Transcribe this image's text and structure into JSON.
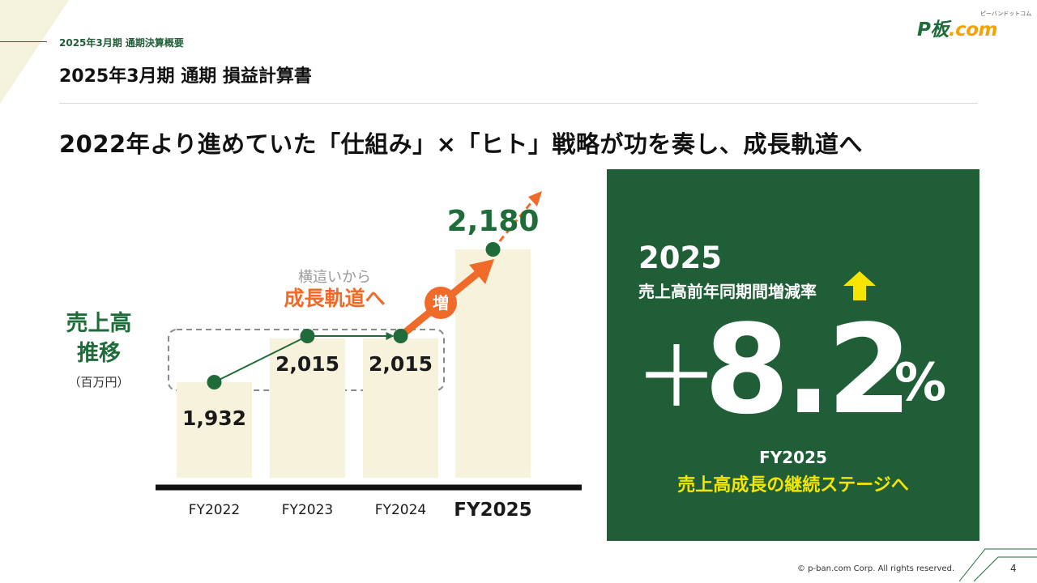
{
  "header": {
    "section_label": "2025年3月期 通期決算概要",
    "page_title": "2025年3月期 通期 損益計算書",
    "logo_text_p": "P板",
    "logo_text_com": ".com",
    "logo_kana": "ピーバンドットコム"
  },
  "headline": "2022年より進めていた「仕組み」×「ヒト」戦略が功を奏し、成長軌道へ",
  "chart_data": {
    "type": "bar",
    "categories": [
      "FY2022",
      "FY2023",
      "FY2024",
      "FY2025"
    ],
    "values": [
      1932,
      2015,
      2015,
      2180
    ],
    "value_labels": [
      "1,932",
      "2,015",
      "2,015",
      "2,180"
    ],
    "title": "売上高推移",
    "title_lines": [
      "売上高",
      "推移"
    ],
    "unit": "（百万円）",
    "annotation_small": "横這いから",
    "annotation_large": "成長軌道へ",
    "badge": "増",
    "colors": {
      "bar": "#f6f2dc",
      "trend": "#1f6b3a",
      "growth": "#f06a2a",
      "title": "#1f6b3a",
      "axis": "#111111"
    }
  },
  "kpi": {
    "year": "2025",
    "subtitle": "売上高前年同期間増減率",
    "sign": "＋",
    "value": "8.2",
    "unit": "%",
    "fy_label": "FY2025",
    "caption": "売上高成長の継続ステージへ",
    "colors": {
      "panel": "#1f5e36",
      "arrow": "#f6e500",
      "caption": "#f6e500"
    },
    "arrow_icon": "up-arrow-icon"
  },
  "footer": {
    "copyright": "© p-ban.com Corp. All rights reserved.",
    "page_number": "4"
  }
}
